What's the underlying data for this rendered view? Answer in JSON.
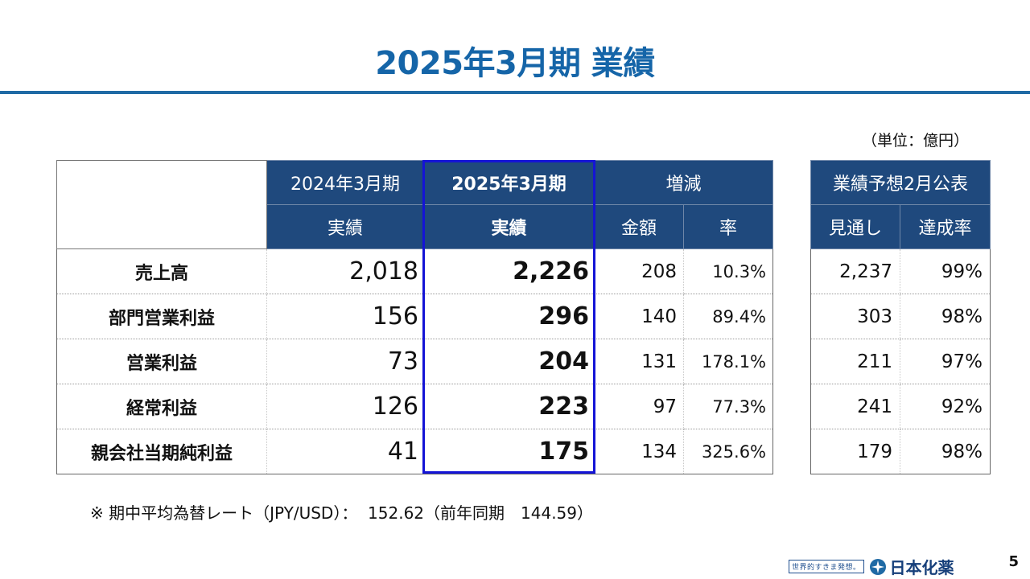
{
  "title": "2025年3月期 業績",
  "unit": "（単位：億円）",
  "main_table": {
    "group_headers": {
      "prev_year": "2024年3月期",
      "curr_year": "2025年3月期",
      "change": "増減"
    },
    "sub_headers": {
      "prev_actual": "実績",
      "curr_actual": "実績",
      "amount": "金額",
      "rate": "率"
    },
    "rows": [
      {
        "label": "売上高",
        "prev": "2,018",
        "curr": "2,226",
        "diff": "208",
        "rate": "10.3%"
      },
      {
        "label": "部門営業利益",
        "prev": "156",
        "curr": "296",
        "diff": "140",
        "rate": "89.4%"
      },
      {
        "label": "営業利益",
        "prev": "73",
        "curr": "204",
        "diff": "131",
        "rate": "178.1%"
      },
      {
        "label": "経常利益",
        "prev": "126",
        "curr": "223",
        "diff": "97",
        "rate": "77.3%"
      },
      {
        "label": "親会社当期純利益",
        "prev": "41",
        "curr": "175",
        "diff": "134",
        "rate": "325.6%"
      }
    ]
  },
  "forecast_table": {
    "header": "業績予想2月公表",
    "sub_headers": {
      "outlook": "見通し",
      "achievement": "達成率"
    },
    "rows": [
      {
        "outlook": "2,237",
        "achievement": "99%"
      },
      {
        "outlook": "303",
        "achievement": "98%"
      },
      {
        "outlook": "211",
        "achievement": "97%"
      },
      {
        "outlook": "241",
        "achievement": "92%"
      },
      {
        "outlook": "179",
        "achievement": "98%"
      }
    ]
  },
  "note": "※ 期中平均為替レート（JPY/USD）：  152.62（前年同期　144.59）",
  "footer": {
    "slogan": "世界的すきま発想。",
    "company": "日本化薬",
    "page_number": "5"
  },
  "colors": {
    "title": "#1565a8",
    "header_bg": "#1f497d",
    "highlight_border": "#1414d6"
  }
}
